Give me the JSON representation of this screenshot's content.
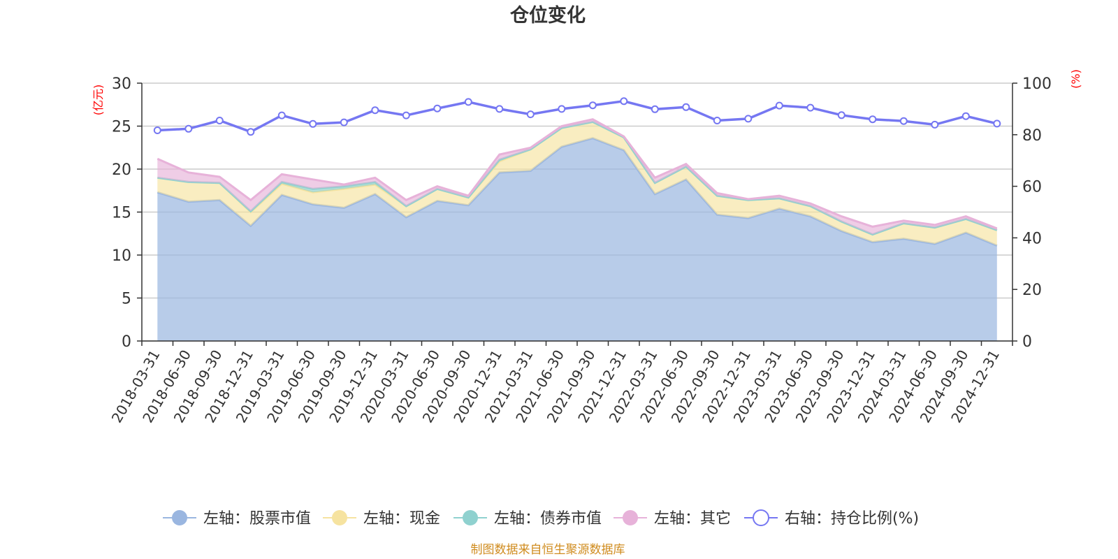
{
  "chart_data": {
    "type": "area",
    "title": "仓位变化",
    "left_axis_unit": "(亿元)",
    "right_axis_unit": "(%)",
    "y_left_ticks": [
      "0",
      "5",
      "10",
      "15",
      "20",
      "25",
      "30"
    ],
    "y_right_ticks": [
      "0",
      "20",
      "40",
      "60",
      "80",
      "100"
    ],
    "ylim_left": [
      0,
      30
    ],
    "ylim_right": [
      0,
      100
    ],
    "grid": true,
    "legend_position": "bottom",
    "categories": [
      "2018-03-31",
      "2018-06-30",
      "2018-09-30",
      "2018-12-31",
      "2019-03-31",
      "2019-06-30",
      "2019-09-30",
      "2019-12-31",
      "2020-03-31",
      "2020-06-30",
      "2020-09-30",
      "2020-12-31",
      "2021-03-31",
      "2021-06-30",
      "2021-09-30",
      "2021-12-31",
      "2022-03-31",
      "2022-06-30",
      "2022-09-30",
      "2022-12-31",
      "2023-03-31",
      "2023-06-30",
      "2023-09-30",
      "2023-12-31",
      "2024-03-31",
      "2024-06-30",
      "2024-09-30",
      "2024-12-31"
    ],
    "series": [
      {
        "name": "左轴：股票市值",
        "axis": "left",
        "kind": "stacked-area",
        "color": "#9ab6e0",
        "values": [
          17.3,
          16.2,
          16.4,
          13.4,
          17.0,
          15.9,
          15.5,
          17.1,
          14.4,
          16.3,
          15.8,
          19.6,
          19.8,
          22.6,
          23.6,
          22.2,
          17.1,
          18.8,
          14.7,
          14.3,
          15.4,
          14.5,
          12.8,
          11.5,
          11.9,
          11.3,
          12.6,
          11.1
        ]
      },
      {
        "name": "左轴：现金",
        "axis": "left",
        "kind": "stacked-area",
        "color": "#f6e3a0",
        "values": [
          1.7,
          2.3,
          2.0,
          1.6,
          1.3,
          1.4,
          2.2,
          1.1,
          1.3,
          1.4,
          0.9,
          1.3,
          2.5,
          2.2,
          1.9,
          1.5,
          1.3,
          1.5,
          2.2,
          2.1,
          1.2,
          1.2,
          1.1,
          0.9,
          1.8,
          1.9,
          1.6,
          1.8
        ]
      },
      {
        "name": "左轴：债券市值",
        "axis": "left",
        "kind": "stacked-area",
        "color": "#8fd1cf",
        "values": [
          0.0,
          0.0,
          0.0,
          0.1,
          0.2,
          0.4,
          0.3,
          0.3,
          0.0,
          0.0,
          0.0,
          0.2,
          0.0,
          0.0,
          0.0,
          0.0,
          0.0,
          0.0,
          0.0,
          0.0,
          0.0,
          0.0,
          0.0,
          0.0,
          0.0,
          0.0,
          0.0,
          0.0
        ]
      },
      {
        "name": "左轴：其它",
        "axis": "left",
        "kind": "stacked-area",
        "color": "#e7b2d9",
        "values": [
          2.2,
          1.1,
          0.7,
          1.3,
          0.9,
          1.1,
          0.2,
          0.5,
          0.7,
          0.3,
          0.2,
          0.6,
          0.2,
          0.2,
          0.3,
          0.1,
          0.6,
          0.3,
          0.3,
          0.1,
          0.3,
          0.3,
          0.6,
          0.9,
          0.3,
          0.3,
          0.3,
          0.2
        ]
      },
      {
        "name": "右轴：持仓比例(%)",
        "axis": "right",
        "kind": "line",
        "color": "#7577f2",
        "values": [
          81.7,
          82.3,
          85.5,
          81.1,
          87.5,
          84.2,
          84.8,
          89.5,
          87.5,
          90.2,
          92.7,
          90.0,
          87.9,
          90.0,
          91.4,
          93.0,
          89.9,
          90.7,
          85.5,
          86.2,
          91.3,
          90.5,
          87.6,
          86.0,
          85.3,
          83.9,
          87.2,
          84.3
        ]
      }
    ],
    "source": "制图数据来自恒生聚源数据库"
  }
}
